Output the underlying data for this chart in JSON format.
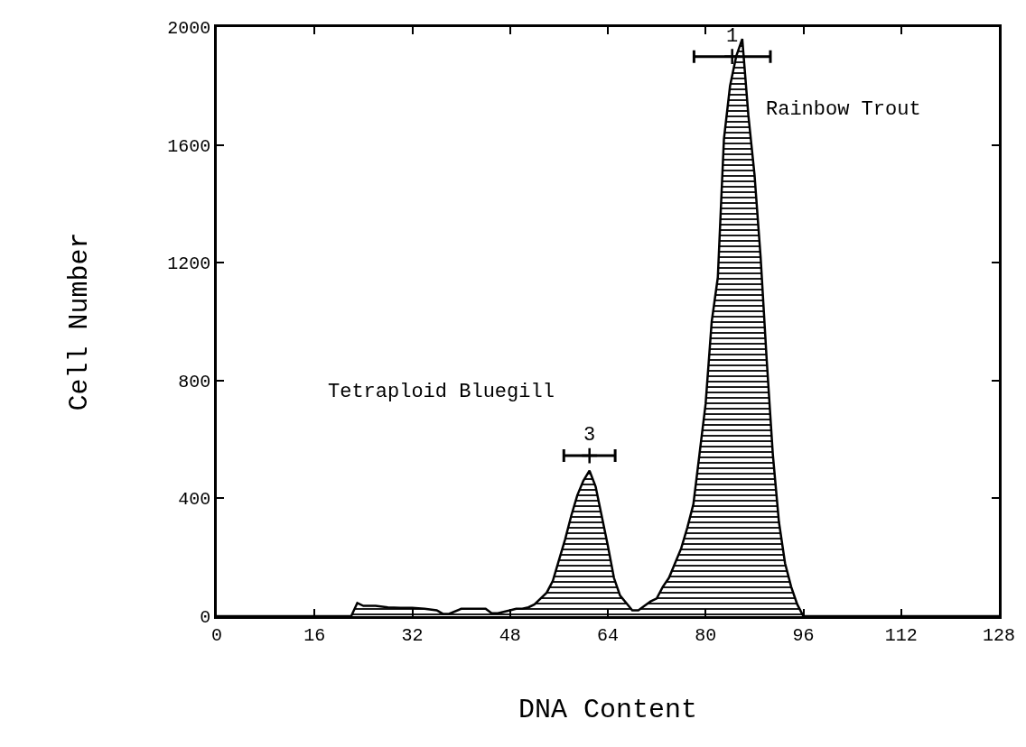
{
  "chart_data": {
    "type": "area",
    "xlabel": "DNA Content",
    "ylabel": "Cell Number",
    "series": [
      {
        "color": "#000000",
        "x": [
          0,
          22,
          23,
          24,
          26,
          28,
          30,
          32,
          34,
          36,
          37,
          38,
          40,
          42,
          44,
          45,
          46,
          48,
          49,
          50,
          51,
          52,
          53,
          54,
          55,
          56,
          57,
          58,
          59,
          60,
          61,
          62,
          63,
          64,
          65,
          66,
          67,
          68,
          69,
          70,
          71,
          72,
          73,
          74,
          75,
          76,
          77,
          78,
          79,
          80,
          81,
          82,
          83,
          84,
          85,
          86,
          87,
          88,
          89,
          90,
          91,
          92,
          93,
          94,
          95,
          96,
          128
        ],
        "values": [
          0,
          0,
          45,
          35,
          35,
          30,
          28,
          28,
          25,
          20,
          8,
          8,
          25,
          25,
          25,
          10,
          10,
          20,
          25,
          25,
          30,
          40,
          60,
          80,
          120,
          190,
          260,
          340,
          410,
          460,
          494,
          440,
          340,
          240,
          130,
          70,
          45,
          20,
          20,
          35,
          50,
          60,
          100,
          130,
          180,
          230,
          300,
          380,
          550,
          720,
          1000,
          1150,
          1620,
          1800,
          1900,
          1960,
          1700,
          1500,
          1220,
          870,
          550,
          320,
          180,
          100,
          40,
          0,
          0
        ]
      },
      {
        "type": "scatter",
        "color": "#000000",
        "marker": "cross",
        "x": [
          84.35,
          61
        ],
        "values": [
          1900,
          545
        ],
        "xerrors": [
          6.25,
          4.2
        ]
      }
    ],
    "xlim": [
      0,
      128
    ],
    "xticks": [
      0,
      16,
      32,
      48,
      64,
      80,
      96,
      112,
      128
    ],
    "ylim": [
      0,
      2000
    ],
    "yticks": [
      0,
      400,
      800,
      1200,
      1600,
      2000
    ],
    "annotations": [
      "Rainbow Trout",
      "Tetraploid Bluegill",
      {
        "text": "1",
        "x": 84.35,
        "y": 1900
      },
      {
        "text": "3",
        "x": 61,
        "y": 545
      }
    ]
  }
}
